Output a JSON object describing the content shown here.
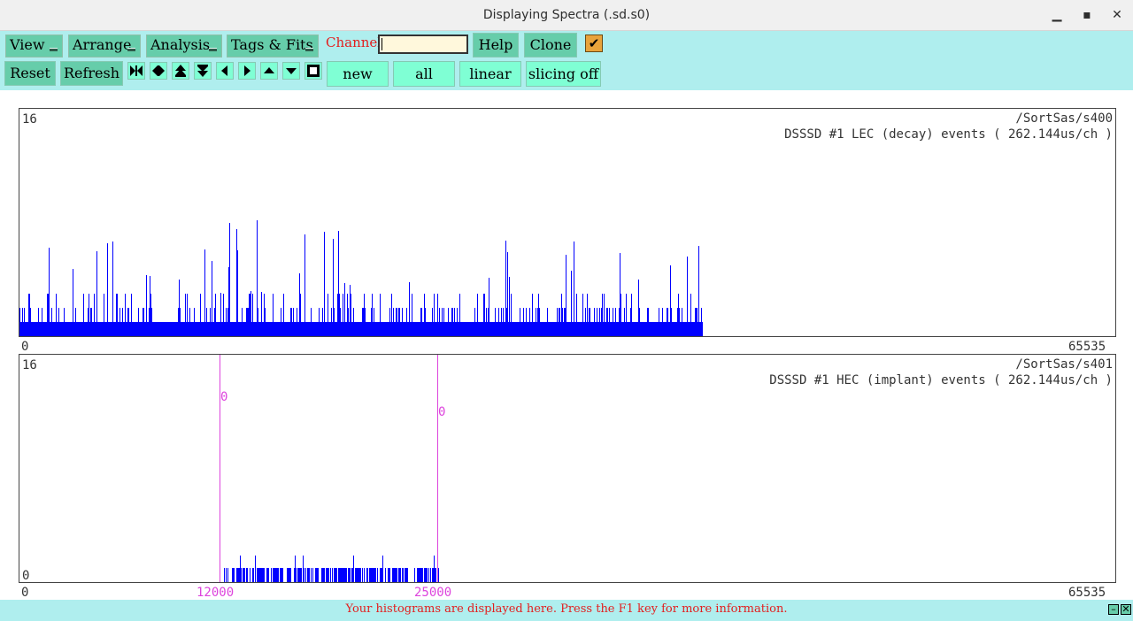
{
  "window": {
    "title": "Displaying Spectra (.sd.s0)",
    "minimize": "▁",
    "maximize": "▪",
    "close": "✕"
  },
  "toolbar": {
    "menus": [
      "View",
      "Arrange",
      "Analysis",
      "Tags & Fits"
    ],
    "channel_label": "Channel:",
    "channel_value": "",
    "help_label": "Help",
    "clone_label": "Clone",
    "checkbox_checked": true,
    "reset_label": "Reset",
    "refresh_label": "Refresh",
    "nav_icons": [
      "expand-horizontal-icon",
      "compress-horizontal-icon",
      "expand-vertical-icon",
      "compress-vertical-icon",
      "scroll-left-icon",
      "scroll-right-icon",
      "scroll-up-icon",
      "scroll-down-icon",
      "stop-icon"
    ],
    "new_label": "new",
    "all_label": "all",
    "linear_label": "linear",
    "slicing_label": "slicing off"
  },
  "spectra": [
    {
      "path": "/SortSas/s400",
      "label": "DSSSD #1 LEC (decay) events ( 262.144us/ch )",
      "ymax": "16",
      "xmin": "0",
      "xmax": "65535",
      "color": "#0000ff"
    },
    {
      "path": "/SortSas/s401",
      "label": "DSSSD #1 HEC (implant) events ( 262.144us/ch )",
      "ymax": "16",
      "ymin": "0",
      "xmin": "0",
      "xmax": "65535",
      "color": "#0000ff",
      "markers": [
        {
          "value": "12000",
          "label": "0"
        },
        {
          "value": "25000",
          "label": "0"
        }
      ],
      "marker_color": "#dd44dd"
    }
  ],
  "status": {
    "message": "Your histograms are displayed here. Press the F1 key for more information."
  }
}
